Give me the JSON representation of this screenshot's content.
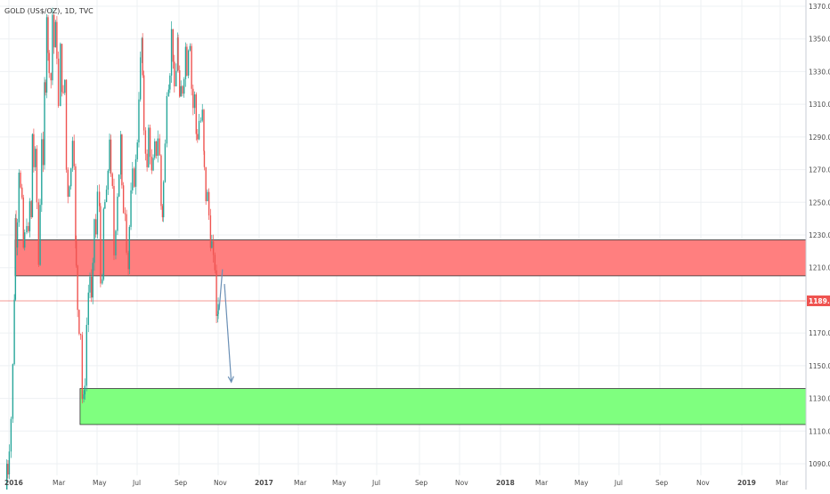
{
  "header": {
    "symbol_text": "GOLD (US$/OZ), 1D, TVC"
  },
  "colors": {
    "up": "#26a69a",
    "down": "#ef5350",
    "resistance_zone": "#ff7f7f",
    "support_zone": "#7fff7f",
    "projection_arrow": "#6a8fb5",
    "price_line": "#ef5350",
    "grid": "#eef0f3"
  },
  "chart_data": {
    "type": "candlestick",
    "instrument": "GOLD (US$/OZ)",
    "timeframe": "1D",
    "source": "TVC",
    "x_axis_labels": [
      "2016",
      "Mar",
      "May",
      "Jul",
      "Sep",
      "Nov",
      "2017",
      "Mar",
      "May",
      "Jul",
      "Sep",
      "Nov",
      "2018",
      "Mar",
      "May",
      "Jul",
      "Sep",
      "Nov",
      "2019",
      "Mar"
    ],
    "y_axis_labels": [
      1090.0,
      1110.0,
      1130.0,
      1150.0,
      1170.0,
      1189.7,
      1210.0,
      1230.0,
      1250.0,
      1270.0,
      1290.0,
      1310.0,
      1330.0,
      1350.0,
      1370.0
    ],
    "ylim": [
      1083,
      1373
    ],
    "current_price": {
      "label": "1189.70",
      "value": 1189.7
    },
    "zones": [
      {
        "name": "resistance",
        "from": "2016-02-10",
        "to": "2019-03-31",
        "low": 1205,
        "high": 1227
      },
      {
        "name": "support",
        "from": "2016-12-01",
        "to": "2019-03-31",
        "low": 1114,
        "high": 1136
      }
    ],
    "projection": [
      {
        "from": [
          "2018-08-24",
          1184
        ],
        "to": [
          "2018-09-08",
          1209
        ]
      },
      {
        "from": [
          "2018-09-17",
          1200
        ],
        "to": [
          "2018-10-18",
          1140
        ]
      }
    ],
    "price_path": [
      [
        "2016-01-01",
        1060
      ],
      [
        "2016-01-06",
        1090
      ],
      [
        "2016-01-12",
        1085
      ],
      [
        "2016-01-20",
        1100
      ],
      [
        "2016-01-28",
        1118
      ],
      [
        "2016-02-04",
        1150
      ],
      [
        "2016-02-09",
        1192
      ],
      [
        "2016-02-12",
        1240
      ],
      [
        "2016-02-18",
        1225
      ],
      [
        "2016-02-25",
        1240
      ],
      [
        "2016-03-03",
        1270
      ],
      [
        "2016-03-10",
        1258
      ],
      [
        "2016-03-16",
        1250
      ],
      [
        "2016-03-22",
        1222
      ],
      [
        "2016-03-31",
        1230
      ],
      [
        "2016-04-08",
        1238
      ],
      [
        "2016-04-14",
        1230
      ],
      [
        "2016-04-21",
        1250
      ],
      [
        "2016-04-26",
        1240
      ],
      [
        "2016-05-02",
        1292
      ],
      [
        "2016-05-09",
        1272
      ],
      [
        "2016-05-16",
        1280
      ],
      [
        "2016-05-24",
        1250
      ],
      [
        "2016-05-31",
        1212
      ],
      [
        "2016-06-07",
        1250
      ],
      [
        "2016-06-14",
        1290
      ],
      [
        "2016-06-20",
        1270
      ],
      [
        "2016-06-24",
        1322
      ],
      [
        "2016-06-30",
        1320
      ],
      [
        "2016-07-06",
        1365
      ],
      [
        "2016-07-11",
        1340
      ],
      [
        "2016-07-19",
        1332
      ],
      [
        "2016-07-26",
        1325
      ],
      [
        "2016-08-02",
        1365
      ],
      [
        "2016-08-09",
        1345
      ],
      [
        "2016-08-15",
        1358
      ],
      [
        "2016-08-22",
        1340
      ],
      [
        "2016-08-31",
        1308
      ],
      [
        "2016-09-07",
        1345
      ],
      [
        "2016-09-13",
        1320
      ],
      [
        "2016-09-20",
        1315
      ],
      [
        "2016-09-27",
        1325
      ],
      [
        "2016-10-04",
        1270
      ],
      [
        "2016-10-11",
        1255
      ],
      [
        "2016-10-18",
        1262
      ],
      [
        "2016-10-25",
        1270
      ],
      [
        "2016-11-01",
        1290
      ],
      [
        "2016-11-08",
        1275
      ],
      [
        "2016-11-11",
        1225
      ],
      [
        "2016-11-17",
        1210
      ],
      [
        "2016-11-24",
        1185
      ],
      [
        "2016-12-01",
        1172
      ],
      [
        "2016-12-08",
        1170
      ],
      [
        "2016-12-15",
        1130
      ],
      [
        "2016-12-20",
        1130
      ],
      [
        "2016-12-28",
        1140
      ],
      [
        "2017-01-05",
        1175
      ],
      [
        "2017-01-12",
        1195
      ],
      [
        "2017-01-19",
        1205
      ],
      [
        "2017-01-25",
        1190
      ],
      [
        "2017-02-01",
        1210
      ],
      [
        "2017-02-08",
        1240
      ],
      [
        "2017-02-15",
        1230
      ],
      [
        "2017-02-24",
        1255
      ],
      [
        "2017-03-01",
        1248
      ],
      [
        "2017-03-09",
        1203
      ],
      [
        "2017-03-15",
        1200
      ],
      [
        "2017-03-21",
        1245
      ],
      [
        "2017-03-28",
        1250
      ],
      [
        "2017-04-04",
        1255
      ],
      [
        "2017-04-11",
        1270
      ],
      [
        "2017-04-17",
        1290
      ],
      [
        "2017-04-24",
        1265
      ],
      [
        "2017-05-01",
        1258
      ],
      [
        "2017-05-09",
        1218
      ],
      [
        "2017-05-17",
        1235
      ],
      [
        "2017-05-24",
        1255
      ],
      [
        "2017-06-01",
        1268
      ],
      [
        "2017-06-06",
        1290
      ],
      [
        "2017-06-13",
        1258
      ],
      [
        "2017-06-20",
        1245
      ],
      [
        "2017-06-27",
        1245
      ],
      [
        "2017-07-05",
        1222
      ],
      [
        "2017-07-10",
        1210
      ],
      [
        "2017-07-17",
        1235
      ],
      [
        "2017-07-24",
        1255
      ],
      [
        "2017-08-01",
        1268
      ],
      [
        "2017-08-08",
        1262
      ],
      [
        "2017-08-15",
        1275
      ],
      [
        "2017-08-22",
        1288
      ],
      [
        "2017-08-29",
        1315
      ],
      [
        "2017-09-05",
        1337
      ],
      [
        "2017-09-08",
        1350
      ],
      [
        "2017-09-14",
        1325
      ],
      [
        "2017-09-21",
        1295
      ],
      [
        "2017-09-28",
        1282
      ],
      [
        "2017-10-05",
        1270
      ],
      [
        "2017-10-12",
        1295
      ],
      [
        "2017-10-19",
        1280
      ],
      [
        "2017-10-26",
        1268
      ],
      [
        "2017-11-02",
        1275
      ],
      [
        "2017-11-09",
        1285
      ],
      [
        "2017-11-16",
        1280
      ],
      [
        "2017-11-24",
        1290
      ],
      [
        "2017-12-01",
        1278
      ],
      [
        "2017-12-07",
        1248
      ],
      [
        "2017-12-12",
        1242
      ],
      [
        "2017-12-19",
        1262
      ],
      [
        "2017-12-27",
        1285
      ],
      [
        "2018-01-04",
        1318
      ],
      [
        "2018-01-10",
        1322
      ],
      [
        "2018-01-17",
        1330
      ],
      [
        "2018-01-24",
        1355
      ],
      [
        "2018-01-30",
        1338
      ],
      [
        "2018-02-07",
        1318
      ],
      [
        "2018-02-14",
        1330
      ],
      [
        "2018-02-16",
        1352
      ],
      [
        "2018-02-23",
        1330
      ],
      [
        "2018-03-01",
        1312
      ],
      [
        "2018-03-08",
        1320
      ],
      [
        "2018-03-15",
        1318
      ],
      [
        "2018-03-22",
        1328
      ],
      [
        "2018-03-28",
        1345
      ],
      [
        "2018-04-04",
        1330
      ],
      [
        "2018-04-11",
        1345
      ],
      [
        "2018-04-18",
        1348
      ],
      [
        "2018-04-25",
        1320
      ],
      [
        "2018-05-02",
        1308
      ],
      [
        "2018-05-09",
        1315
      ],
      [
        "2018-05-15",
        1292
      ],
      [
        "2018-05-22",
        1290
      ],
      [
        "2018-05-30",
        1300
      ],
      [
        "2018-06-06",
        1300
      ],
      [
        "2018-06-13",
        1305
      ],
      [
        "2018-06-15",
        1280
      ],
      [
        "2018-06-22",
        1270
      ],
      [
        "2018-06-29",
        1252
      ],
      [
        "2018-07-06",
        1255
      ],
      [
        "2018-07-13",
        1242
      ],
      [
        "2018-07-19",
        1225
      ],
      [
        "2018-07-26",
        1225
      ],
      [
        "2018-08-02",
        1215
      ],
      [
        "2018-08-09",
        1210
      ],
      [
        "2018-08-15",
        1178
      ],
      [
        "2018-08-17",
        1182
      ],
      [
        "2018-08-24",
        1189.7
      ]
    ],
    "price_path_note": "approximate daily closing path of the gold price read off the chart"
  }
}
